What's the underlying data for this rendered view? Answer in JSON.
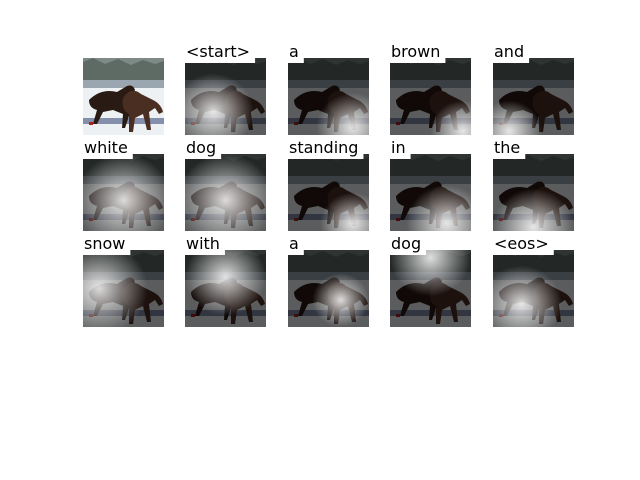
{
  "words": [
    "<start>",
    "a",
    "brown",
    "and",
    "white",
    "dog",
    "standing",
    "in",
    "the",
    "snow",
    "with",
    "a",
    "dog",
    "<eos>"
  ]
}
